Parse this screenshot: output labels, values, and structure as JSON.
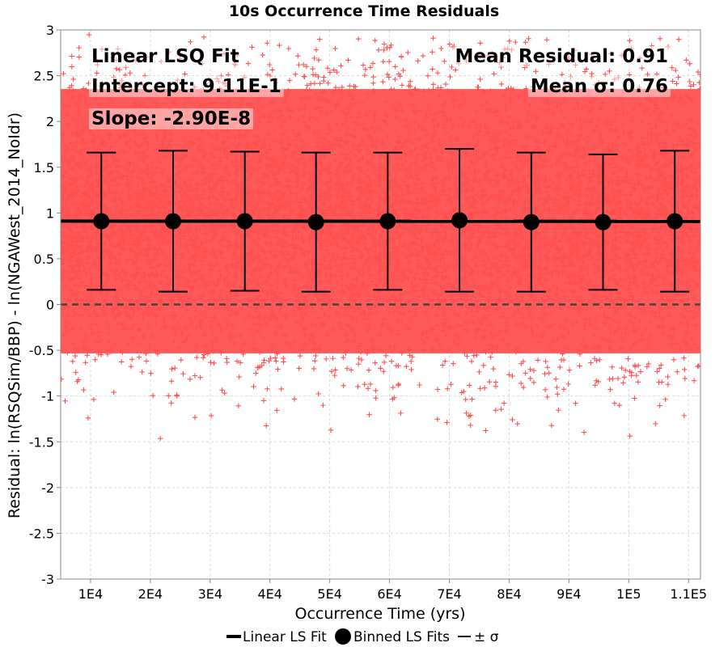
{
  "chart_data": {
    "type": "scatter",
    "title": "10s Occurrence Time Residuals",
    "xlabel": "Occurrence Time (yrs)",
    "ylabel": "Residual: ln(RSQSim/BBP) - ln(NGAWest_2014_NoIdr)",
    "xlim": [
      5000,
      112000
    ],
    "ylim": [
      -3,
      3
    ],
    "x_ticks": [
      10000,
      20000,
      30000,
      40000,
      50000,
      60000,
      70000,
      80000,
      90000,
      100000,
      110000
    ],
    "x_tick_labels": [
      "1E4",
      "2E4",
      "3E4",
      "4E4",
      "5E4",
      "6E4",
      "7E4",
      "8E4",
      "9E4",
      "1E5",
      "1.1E5"
    ],
    "y_ticks": [
      -3,
      -2.5,
      -2,
      -1.5,
      -1,
      -0.5,
      0,
      0.5,
      1,
      1.5,
      2,
      2.5,
      3
    ],
    "y_tick_labels": [
      "-3",
      "-2.5",
      "-2",
      "-1.5",
      "-1",
      "-0.5",
      "0",
      "0.5",
      "1",
      "1.5",
      "2",
      "2.5",
      "3"
    ],
    "grid": true,
    "legend_position": "bottom-center",
    "scatter_color": "#ff5050",
    "scatter_band": {
      "center": 0.91,
      "sigma": 0.76,
      "outer_bottom": -1.55,
      "outer_top": 2.95
    },
    "linear_fit": {
      "intercept": 0.911,
      "slope": -2.9e-08,
      "color": "#000000"
    },
    "zero_line": {
      "y": 0,
      "style": "dashed",
      "color": "#444444"
    },
    "binned_fits": {
      "x": [
        11800,
        23800,
        35800,
        47700,
        59700,
        71700,
        83700,
        95700,
        107700
      ],
      "mean": [
        0.91,
        0.91,
        0.91,
        0.9,
        0.91,
        0.92,
        0.9,
        0.9,
        0.91
      ],
      "sigma": [
        0.75,
        0.77,
        0.76,
        0.76,
        0.75,
        0.78,
        0.76,
        0.74,
        0.77
      ]
    },
    "legend": [
      {
        "label": "Linear LS Fit",
        "symbol": "thick-line"
      },
      {
        "label": "Binned LS Fits",
        "symbol": "filled-circle"
      },
      {
        "label": "± σ",
        "symbol": "thin-line"
      }
    ],
    "annotations": {
      "fit_title": "Linear LSQ Fit",
      "intercept": "Intercept: 9.11E-1",
      "slope": "Slope: -2.90E-8",
      "mean_residual": "Mean Residual: 0.91",
      "mean_sigma": "Mean σ: 0.76"
    }
  }
}
